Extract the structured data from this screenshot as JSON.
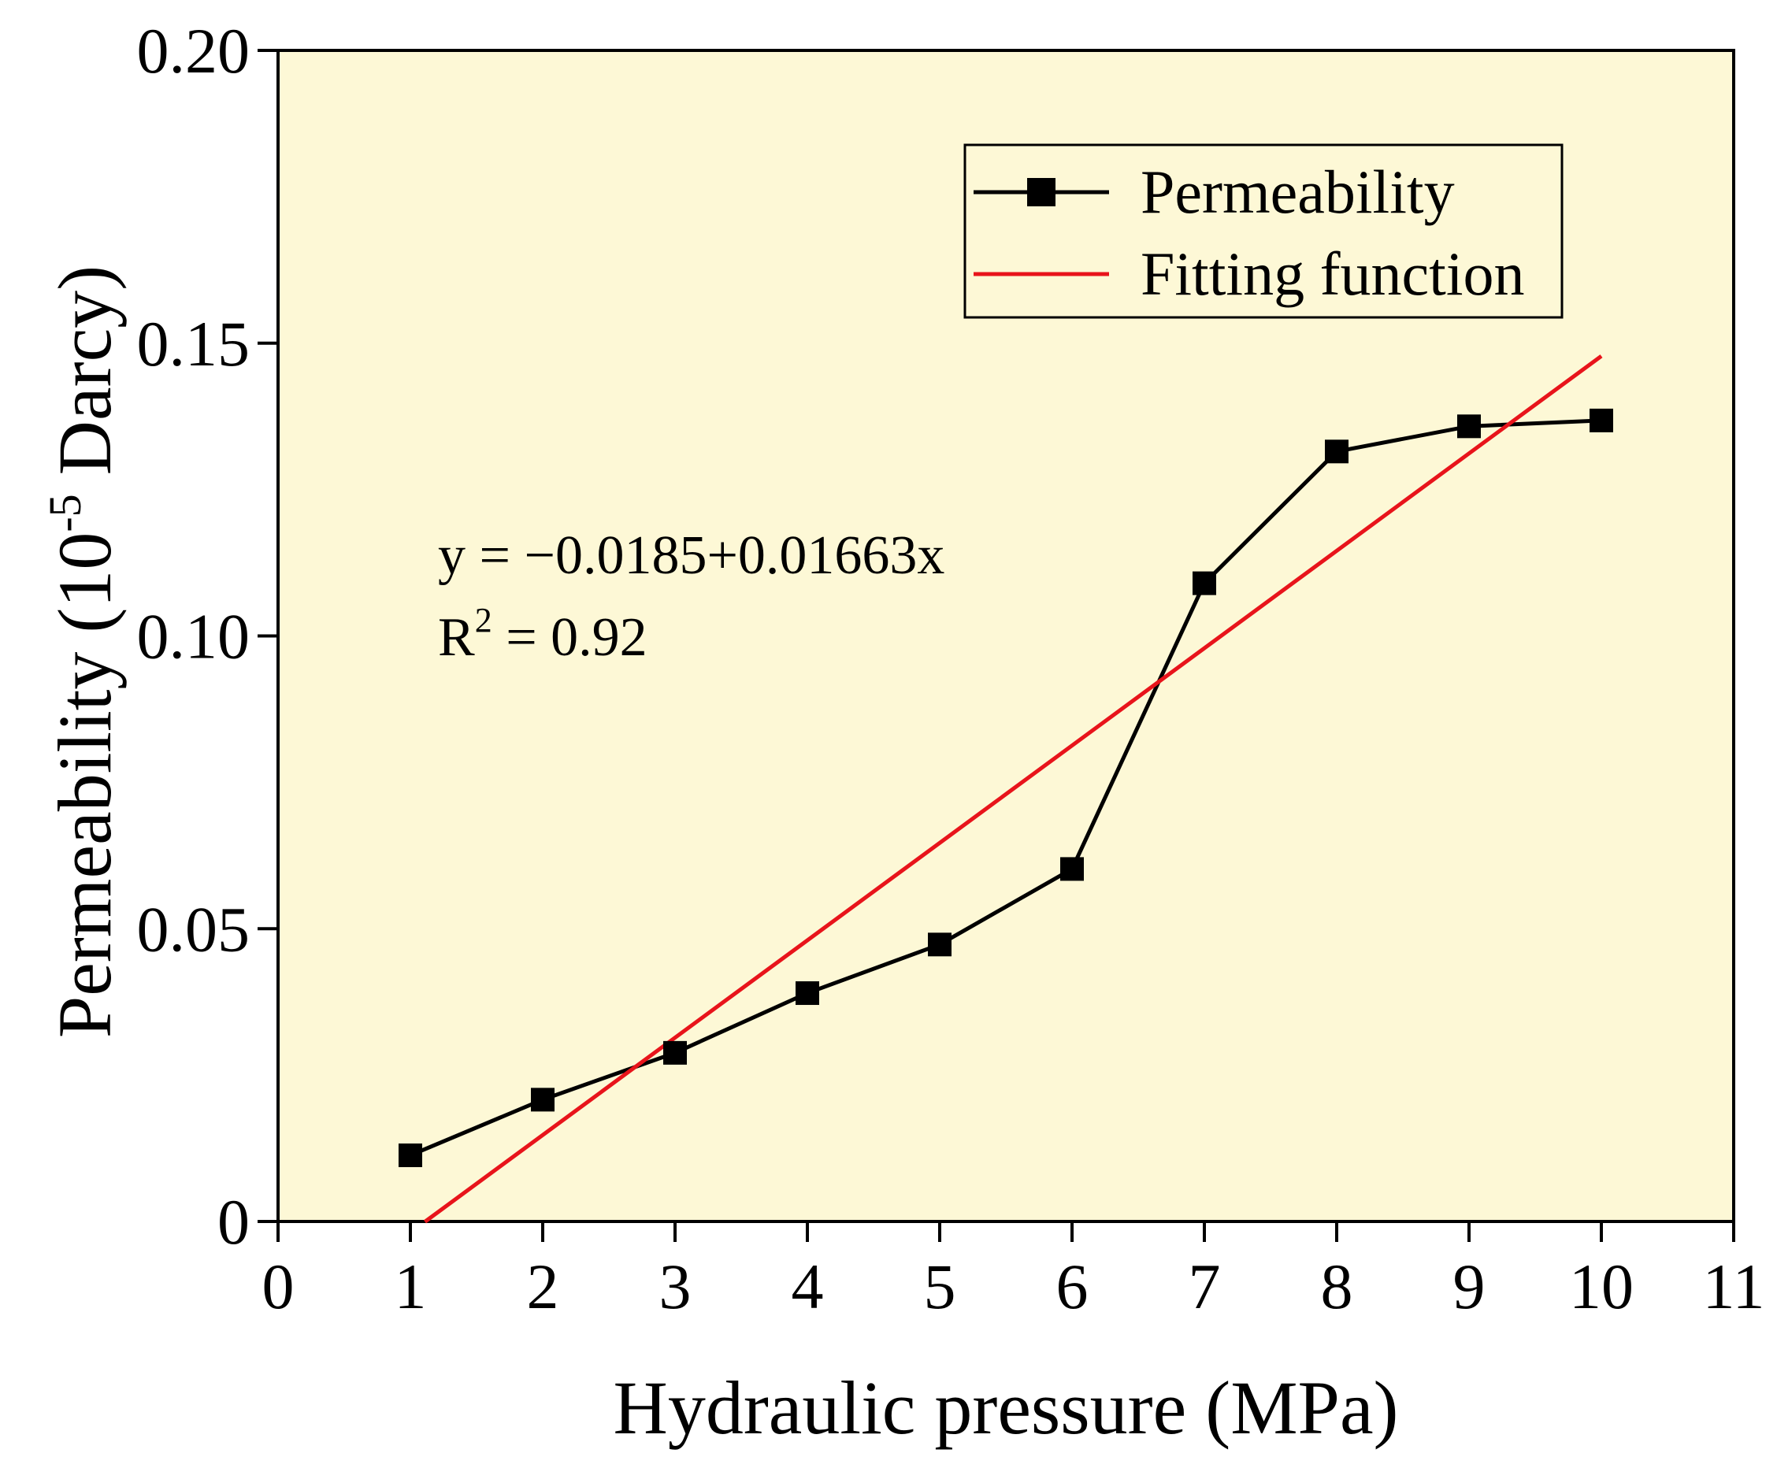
{
  "chart_data": {
    "type": "line",
    "title": "",
    "xlabel": "Hydraulic pressure (MPa)",
    "ylabel": {
      "prefix": "Permeability (10",
      "exponent": "-5",
      "suffix": " Darcy)"
    },
    "xlim": [
      0,
      11
    ],
    "ylim": [
      0,
      0.2
    ],
    "x_ticks": [
      "0",
      "1",
      "2",
      "3",
      "4",
      "5",
      "6",
      "7",
      "8",
      "9",
      "10",
      "11"
    ],
    "y_ticks": [
      "0",
      "0.05",
      "0.10",
      "0.15",
      "0.20"
    ],
    "grid": false,
    "background_color": "#FDF8D6",
    "legend_position": "top-right",
    "series": [
      {
        "name": "Permeability",
        "kind": "line-marker",
        "color": "#000000",
        "marker": "square",
        "x": [
          1,
          2,
          3,
          4,
          5,
          6,
          7,
          8,
          9,
          10
        ],
        "y": [
          0.0113,
          0.0208,
          0.0288,
          0.039,
          0.0473,
          0.0602,
          0.109,
          0.1315,
          0.1358,
          0.1368
        ]
      },
      {
        "name": "Fitting function",
        "kind": "line",
        "color": "#E8141B",
        "intercept": -0.0185,
        "slope": 0.01663,
        "x_range": [
          1.11,
          10
        ]
      }
    ],
    "annotations": {
      "equation": "y = −0.0185+0.01663x",
      "r2_prefix": "R",
      "r2_exponent": "2",
      "r2_suffix": " = 0.92"
    }
  }
}
